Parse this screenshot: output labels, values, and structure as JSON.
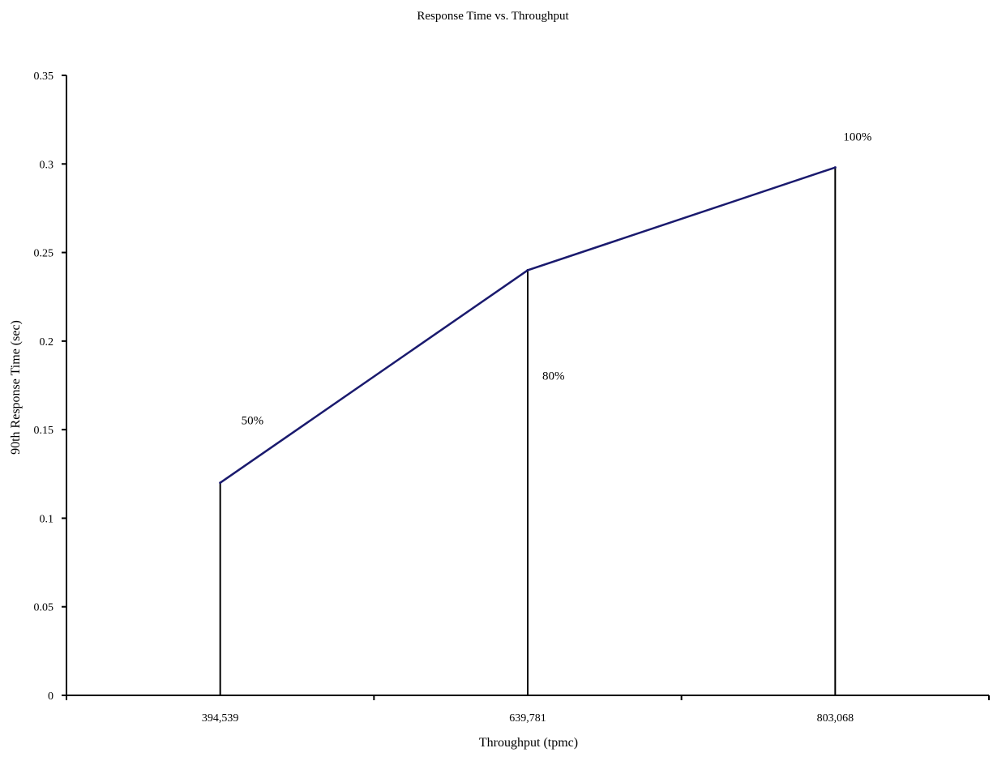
{
  "chart_data": {
    "type": "line",
    "title": "Response Time vs. Throughput",
    "xlabel": "Throughput (tpmc)",
    "ylabel": "90th Response Time (sec)",
    "categories": [
      "394,539",
      "639,781",
      "803,068"
    ],
    "series": [
      {
        "values": [
          0.12,
          0.24,
          0.298
        ],
        "color": "#1a1a6e"
      }
    ],
    "annotations": [
      "50%",
      "80%",
      "100%"
    ],
    "ylim": [
      0,
      0.35
    ],
    "yticks": [
      "0",
      "0.05",
      "0.1",
      "0.15",
      "0.2",
      "0.25",
      "0.3",
      "0.35"
    ],
    "grid": false,
    "legend": "none"
  }
}
